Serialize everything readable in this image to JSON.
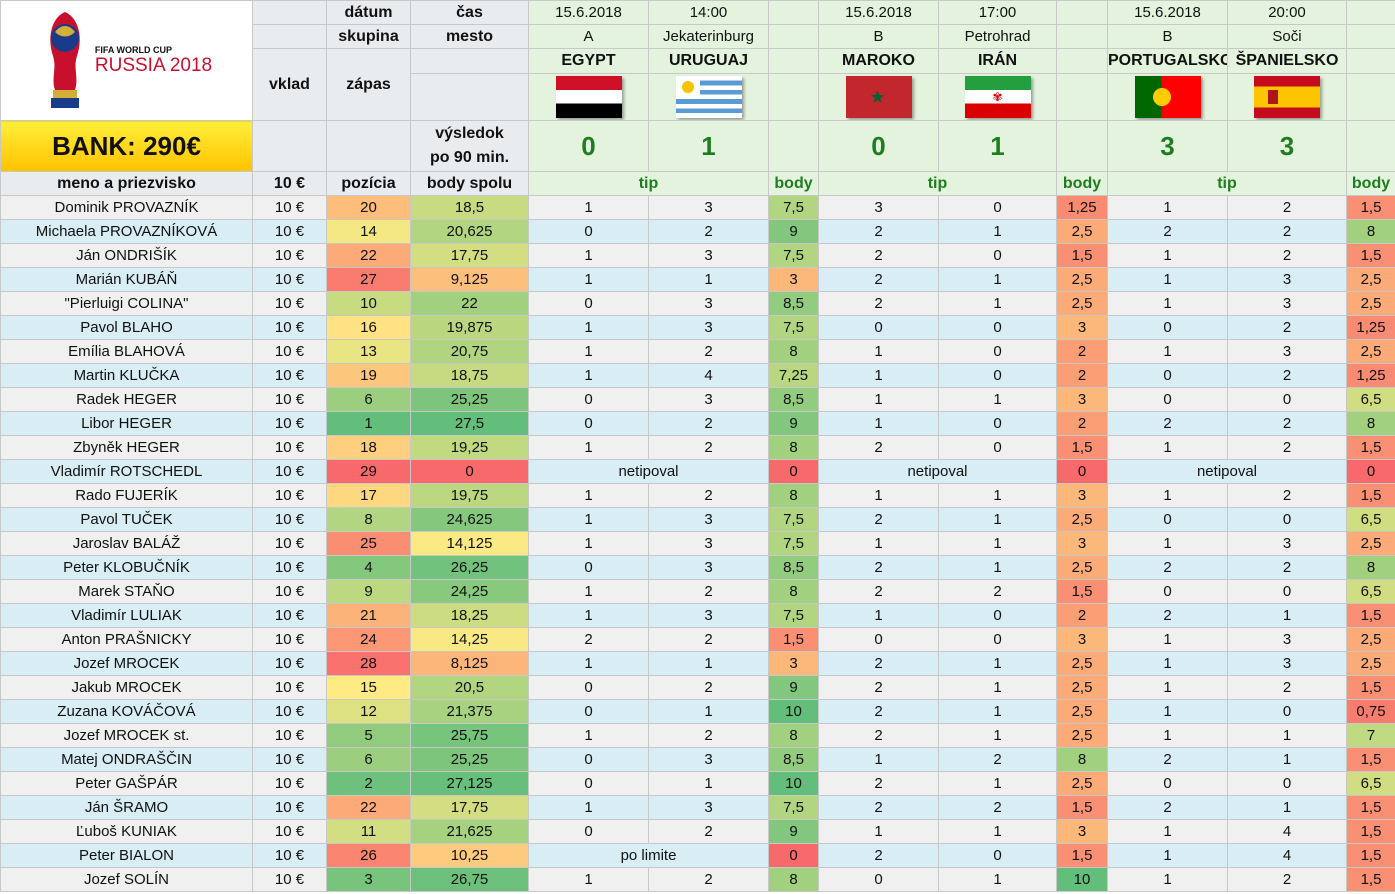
{
  "logo": {
    "line1": "FIFA WORLD CUP",
    "line2": "RUSSIA 2018"
  },
  "bank": "BANK: 290€",
  "headers": {
    "datum": "dátum",
    "cas": "čas",
    "skupina": "skupina",
    "mesto": "mesto",
    "vklad": "vklad",
    "zapas": "zápas",
    "vysledok1": "výsledok",
    "vysledok2": "po 90 min.",
    "meno": "meno a priezvisko",
    "vklad_amt": "10 €",
    "pozicia": "pozícia",
    "body_spolu": "body spolu",
    "tip": "tip",
    "body": "body"
  },
  "matches": [
    {
      "date": "15.6.2018",
      "time": "14:00",
      "group": "A",
      "city": "Jekaterinburg",
      "home": "EGYPT",
      "away": "URUGUAJ",
      "home_flag": "egypt-flag",
      "away_flag": "uruguay-flag",
      "home_score": "0",
      "away_score": "1"
    },
    {
      "date": "15.6.2018",
      "time": "17:00",
      "group": "B",
      "city": "Petrohrad",
      "home": "MAROKO",
      "away": "IRÁN",
      "home_flag": "morocco-flag",
      "away_flag": "iran-flag",
      "home_score": "0",
      "away_score": "1"
    },
    {
      "date": "15.6.2018",
      "time": "20:00",
      "group": "B",
      "city": "Soči",
      "home": "PORTUGALSKO",
      "away": "ŠPANIELSKO",
      "home_flag": "portugal-flag",
      "away_flag": "spain-flag",
      "home_score": "3",
      "away_score": "3"
    }
  ],
  "colors": {
    "low": "#f8696b",
    "mid": "#ffeb84",
    "high": "#63be7b"
  },
  "rows": [
    {
      "name": "Dominik PROVAZNÍK",
      "vklad": "10 €",
      "poz": "20",
      "total": "18,5",
      "m": [
        [
          "1",
          "3",
          "7,5"
        ],
        [
          "3",
          "0",
          "1,25"
        ],
        [
          "1",
          "2",
          "1,5"
        ]
      ]
    },
    {
      "name": "Michaela PROVAZNÍKOVÁ",
      "vklad": "10 €",
      "poz": "14",
      "total": "20,625",
      "m": [
        [
          "0",
          "2",
          "9"
        ],
        [
          "2",
          "1",
          "2,5"
        ],
        [
          "2",
          "2",
          "8"
        ]
      ]
    },
    {
      "name": "Ján ONDRIŠÍK",
      "vklad": "10 €",
      "poz": "22",
      "total": "17,75",
      "m": [
        [
          "1",
          "3",
          "7,5"
        ],
        [
          "2",
          "0",
          "1,5"
        ],
        [
          "1",
          "2",
          "1,5"
        ]
      ]
    },
    {
      "name": "Marián KUBÁŇ",
      "vklad": "10 €",
      "poz": "27",
      "total": "9,125",
      "m": [
        [
          "1",
          "1",
          "3"
        ],
        [
          "2",
          "1",
          "2,5"
        ],
        [
          "1",
          "3",
          "2,5"
        ]
      ]
    },
    {
      "name": "\"Pierluigi COLINA\"",
      "vklad": "10 €",
      "poz": "10",
      "total": "22",
      "m": [
        [
          "0",
          "3",
          "8,5"
        ],
        [
          "2",
          "1",
          "2,5"
        ],
        [
          "1",
          "3",
          "2,5"
        ]
      ]
    },
    {
      "name": "Pavol BLAHO",
      "vklad": "10 €",
      "poz": "16",
      "total": "19,875",
      "m": [
        [
          "1",
          "3",
          "7,5"
        ],
        [
          "0",
          "0",
          "3"
        ],
        [
          "0",
          "2",
          "1,25"
        ]
      ]
    },
    {
      "name": "Emília BLAHOVÁ",
      "vklad": "10 €",
      "poz": "13",
      "total": "20,75",
      "m": [
        [
          "1",
          "2",
          "8"
        ],
        [
          "1",
          "0",
          "2"
        ],
        [
          "1",
          "3",
          "2,5"
        ]
      ]
    },
    {
      "name": "Martin KLUČKA",
      "vklad": "10 €",
      "poz": "19",
      "total": "18,75",
      "m": [
        [
          "1",
          "4",
          "7,25"
        ],
        [
          "1",
          "0",
          "2"
        ],
        [
          "0",
          "2",
          "1,25"
        ]
      ]
    },
    {
      "name": "Radek HEGER",
      "vklad": "10 €",
      "poz": "6",
      "total": "25,25",
      "m": [
        [
          "0",
          "3",
          "8,5"
        ],
        [
          "1",
          "1",
          "3"
        ],
        [
          "0",
          "0",
          "6,5"
        ]
      ]
    },
    {
      "name": "Libor HEGER",
      "vklad": "10 €",
      "poz": "1",
      "total": "27,5",
      "m": [
        [
          "0",
          "2",
          "9"
        ],
        [
          "1",
          "0",
          "2"
        ],
        [
          "2",
          "2",
          "8"
        ]
      ]
    },
    {
      "name": "Zbyněk HEGER",
      "vklad": "10 €",
      "poz": "18",
      "total": "19,25",
      "m": [
        [
          "1",
          "2",
          "8"
        ],
        [
          "2",
          "0",
          "1,5"
        ],
        [
          "1",
          "2",
          "1,5"
        ]
      ]
    },
    {
      "name": "Vladimír ROTSCHEDL",
      "vklad": "10 €",
      "poz": "29",
      "total": "0",
      "m": [
        [
          "netipoval",
          "",
          "0"
        ],
        [
          "netipoval",
          "",
          "0"
        ],
        [
          "netipoval",
          "",
          "0"
        ]
      ]
    },
    {
      "name": "Rado FUJERÍK",
      "vklad": "10 €",
      "poz": "17",
      "total": "19,75",
      "m": [
        [
          "1",
          "2",
          "8"
        ],
        [
          "1",
          "1",
          "3"
        ],
        [
          "1",
          "2",
          "1,5"
        ]
      ]
    },
    {
      "name": "Pavol TUČEK",
      "vklad": "10 €",
      "poz": "8",
      "total": "24,625",
      "m": [
        [
          "1",
          "3",
          "7,5"
        ],
        [
          "2",
          "1",
          "2,5"
        ],
        [
          "0",
          "0",
          "6,5"
        ]
      ]
    },
    {
      "name": "Jaroslav BALÁŽ",
      "vklad": "10 €",
      "poz": "25",
      "total": "14,125",
      "m": [
        [
          "1",
          "3",
          "7,5"
        ],
        [
          "1",
          "1",
          "3"
        ],
        [
          "1",
          "3",
          "2,5"
        ]
      ]
    },
    {
      "name": "Peter KLOBUČNÍK",
      "vklad": "10 €",
      "poz": "4",
      "total": "26,25",
      "m": [
        [
          "0",
          "3",
          "8,5"
        ],
        [
          "2",
          "1",
          "2,5"
        ],
        [
          "2",
          "2",
          "8"
        ]
      ]
    },
    {
      "name": "Marek STAŇO",
      "vklad": "10 €",
      "poz": "9",
      "total": "24,25",
      "m": [
        [
          "1",
          "2",
          "8"
        ],
        [
          "2",
          "2",
          "1,5"
        ],
        [
          "0",
          "0",
          "6,5"
        ]
      ]
    },
    {
      "name": "Vladimír LULIAK",
      "vklad": "10 €",
      "poz": "21",
      "total": "18,25",
      "m": [
        [
          "1",
          "3",
          "7,5"
        ],
        [
          "1",
          "0",
          "2"
        ],
        [
          "2",
          "1",
          "1,5"
        ]
      ]
    },
    {
      "name": "Anton PRAŠNICKY",
      "vklad": "10 €",
      "poz": "24",
      "total": "14,25",
      "m": [
        [
          "2",
          "2",
          "1,5"
        ],
        [
          "0",
          "0",
          "3"
        ],
        [
          "1",
          "3",
          "2,5"
        ]
      ]
    },
    {
      "name": "Jozef MROCEK",
      "vklad": "10 €",
      "poz": "28",
      "total": "8,125",
      "m": [
        [
          "1",
          "1",
          "3"
        ],
        [
          "2",
          "1",
          "2,5"
        ],
        [
          "1",
          "3",
          "2,5"
        ]
      ]
    },
    {
      "name": "Jakub MROCEK",
      "vklad": "10 €",
      "poz": "15",
      "total": "20,5",
      "m": [
        [
          "0",
          "2",
          "9"
        ],
        [
          "2",
          "1",
          "2,5"
        ],
        [
          "1",
          "2",
          "1,5"
        ]
      ]
    },
    {
      "name": "Zuzana KOVÁČOVÁ",
      "vklad": "10 €",
      "poz": "12",
      "total": "21,375",
      "m": [
        [
          "0",
          "1",
          "10"
        ],
        [
          "2",
          "1",
          "2,5"
        ],
        [
          "1",
          "0",
          "0,75"
        ]
      ]
    },
    {
      "name": "Jozef MROCEK st.",
      "vklad": "10 €",
      "poz": "5",
      "total": "25,75",
      "m": [
        [
          "1",
          "2",
          "8"
        ],
        [
          "2",
          "1",
          "2,5"
        ],
        [
          "1",
          "1",
          "7"
        ]
      ]
    },
    {
      "name": "Matej ONDRAŠČIN",
      "vklad": "10 €",
      "poz": "6",
      "total": "25,25",
      "m": [
        [
          "0",
          "3",
          "8,5"
        ],
        [
          "1",
          "2",
          "8"
        ],
        [
          "2",
          "1",
          "1,5"
        ]
      ]
    },
    {
      "name": "Peter GAŠPÁR",
      "vklad": "10 €",
      "poz": "2",
      "total": "27,125",
      "m": [
        [
          "0",
          "1",
          "10"
        ],
        [
          "2",
          "1",
          "2,5"
        ],
        [
          "0",
          "0",
          "6,5"
        ]
      ]
    },
    {
      "name": "Ján ŠRAMO",
      "vklad": "10 €",
      "poz": "22",
      "total": "17,75",
      "m": [
        [
          "1",
          "3",
          "7,5"
        ],
        [
          "2",
          "2",
          "1,5"
        ],
        [
          "2",
          "1",
          "1,5"
        ]
      ]
    },
    {
      "name": "Ľuboš KUNIAK",
      "vklad": "10 €",
      "poz": "11",
      "total": "21,625",
      "m": [
        [
          "0",
          "2",
          "9"
        ],
        [
          "1",
          "1",
          "3"
        ],
        [
          "1",
          "4",
          "1,5"
        ]
      ]
    },
    {
      "name": "Peter BIALON",
      "vklad": "10 €",
      "poz": "26",
      "total": "10,25",
      "m": [
        [
          "po limite",
          "",
          "0"
        ],
        [
          "2",
          "0",
          "1,5"
        ],
        [
          "1",
          "4",
          "1,5"
        ]
      ]
    },
    {
      "name": "Jozef SOLÍN",
      "vklad": "10 €",
      "poz": "3",
      "total": "26,75",
      "m": [
        [
          "1",
          "2",
          "8"
        ],
        [
          "0",
          "1",
          "10"
        ],
        [
          "1",
          "2",
          "1,5"
        ]
      ]
    }
  ]
}
